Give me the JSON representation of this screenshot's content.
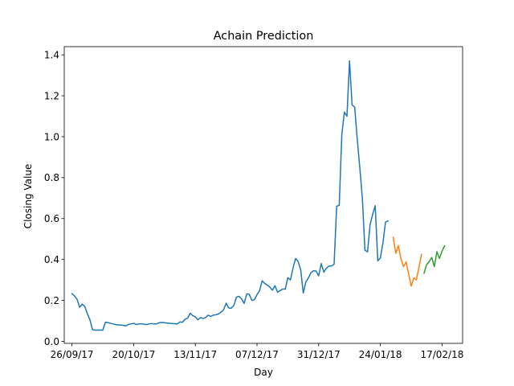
{
  "chart_data": {
    "type": "line",
    "title": "Achain Prediction",
    "xlabel": "Day",
    "ylabel": "Closing Value",
    "ylim": [
      -0.01,
      1.44
    ],
    "xlim": [
      "2017-09-23",
      "2018-02-25"
    ],
    "grid": false,
    "x_tick_labels": [
      "26/09/17",
      "20/10/17",
      "13/11/17",
      "07/12/17",
      "31/12/17",
      "24/01/18",
      "17/02/18"
    ],
    "x_tick_dates": [
      "2017-09-26",
      "2017-10-20",
      "2017-11-13",
      "2017-12-07",
      "2017-12-31",
      "2018-01-24",
      "2018-02-17"
    ],
    "y_ticks": [
      0.0,
      0.2,
      0.4,
      0.6,
      0.8,
      1.0,
      1.2,
      1.4
    ],
    "y_tick_labels": [
      "0.0",
      "0.2",
      "0.4",
      "0.6",
      "0.8",
      "1.0",
      "1.2",
      "1.4"
    ],
    "series": [
      {
        "color": "#1f77b4",
        "x": [
          "2017-09-26",
          "2017-09-27",
          "2017-09-28",
          "2017-09-29",
          "2017-09-30",
          "2017-10-01",
          "2017-10-02",
          "2017-10-03",
          "2017-10-04",
          "2017-10-05",
          "2017-10-06",
          "2017-10-07",
          "2017-10-08",
          "2017-10-09",
          "2017-10-10",
          "2017-10-11",
          "2017-10-12",
          "2017-10-13",
          "2017-10-14",
          "2017-10-15",
          "2017-10-16",
          "2017-10-17",
          "2017-10-18",
          "2017-10-19",
          "2017-10-20",
          "2017-10-21",
          "2017-10-22",
          "2017-10-23",
          "2017-10-24",
          "2017-10-25",
          "2017-10-26",
          "2017-10-27",
          "2017-10-28",
          "2017-10-29",
          "2017-10-30",
          "2017-10-31",
          "2017-11-01",
          "2017-11-02",
          "2017-11-03",
          "2017-11-04",
          "2017-11-05",
          "2017-11-06",
          "2017-11-07",
          "2017-11-08",
          "2017-11-09",
          "2017-11-10",
          "2017-11-11",
          "2017-11-12",
          "2017-11-13",
          "2017-11-14",
          "2017-11-15",
          "2017-11-16",
          "2017-11-17",
          "2017-11-18",
          "2017-11-19",
          "2017-11-20",
          "2017-11-21",
          "2017-11-22",
          "2017-11-23",
          "2017-11-24",
          "2017-11-25",
          "2017-11-26",
          "2017-11-27",
          "2017-11-28",
          "2017-11-29",
          "2017-11-30",
          "2017-12-01",
          "2017-12-02",
          "2017-12-03",
          "2017-12-04",
          "2017-12-05",
          "2017-12-06",
          "2017-12-07",
          "2017-12-08",
          "2017-12-09",
          "2017-12-10",
          "2017-12-11",
          "2017-12-12",
          "2017-12-13",
          "2017-12-14",
          "2017-12-15",
          "2017-12-16",
          "2017-12-17",
          "2017-12-18",
          "2017-12-19",
          "2017-12-20",
          "2017-12-21",
          "2017-12-22",
          "2017-12-23",
          "2017-12-24",
          "2017-12-25",
          "2017-12-26",
          "2017-12-27",
          "2017-12-28",
          "2017-12-29",
          "2017-12-30",
          "2017-12-31",
          "2018-01-01",
          "2018-01-02",
          "2018-01-03",
          "2018-01-04",
          "2018-01-05",
          "2018-01-06",
          "2018-01-07",
          "2018-01-08",
          "2018-01-09",
          "2018-01-10",
          "2018-01-11",
          "2018-01-12",
          "2018-01-13",
          "2018-01-14",
          "2018-01-15",
          "2018-01-16",
          "2018-01-17",
          "2018-01-18",
          "2018-01-19",
          "2018-01-20",
          "2018-01-21",
          "2018-01-22",
          "2018-01-23",
          "2018-01-24",
          "2018-01-25",
          "2018-01-26",
          "2018-01-27"
        ],
        "y": [
          0.233,
          0.222,
          0.205,
          0.166,
          0.182,
          0.17,
          0.135,
          0.105,
          0.057,
          0.055,
          0.055,
          0.055,
          0.055,
          0.093,
          0.092,
          0.088,
          0.085,
          0.082,
          0.08,
          0.08,
          0.078,
          0.075,
          0.083,
          0.085,
          0.088,
          0.082,
          0.085,
          0.086,
          0.084,
          0.082,
          0.085,
          0.087,
          0.085,
          0.086,
          0.091,
          0.092,
          0.091,
          0.089,
          0.088,
          0.087,
          0.086,
          0.085,
          0.095,
          0.093,
          0.108,
          0.113,
          0.137,
          0.126,
          0.12,
          0.105,
          0.116,
          0.112,
          0.116,
          0.128,
          0.122,
          0.128,
          0.13,
          0.134,
          0.142,
          0.154,
          0.186,
          0.163,
          0.162,
          0.176,
          0.216,
          0.22,
          0.207,
          0.185,
          0.232,
          0.23,
          0.2,
          0.203,
          0.228,
          0.248,
          0.296,
          0.283,
          0.275,
          0.265,
          0.25,
          0.272,
          0.24,
          0.248,
          0.255,
          0.255,
          0.311,
          0.3,
          0.357,
          0.405,
          0.39,
          0.35,
          0.236,
          0.29,
          0.31,
          0.336,
          0.345,
          0.343,
          0.32,
          0.38,
          0.338,
          0.357,
          0.368,
          0.368,
          0.377,
          0.66,
          0.665,
          1.01,
          1.12,
          1.1,
          1.37,
          1.155,
          1.145,
          0.99,
          0.85,
          0.7,
          0.446,
          0.437,
          0.57,
          0.62,
          0.663,
          0.393,
          0.408,
          0.48,
          0.583,
          0.588
        ]
      },
      {
        "color": "#ff7f0e",
        "x": [
          "2018-01-29",
          "2018-01-30",
          "2018-01-31",
          "2018-02-01",
          "2018-02-02",
          "2018-02-03",
          "2018-02-04",
          "2018-02-05",
          "2018-02-06",
          "2018-02-07",
          "2018-02-08",
          "2018-02-09"
        ],
        "y": [
          0.508,
          0.43,
          0.468,
          0.405,
          0.365,
          0.388,
          0.33,
          0.27,
          0.31,
          0.3,
          0.36,
          0.425
        ]
      },
      {
        "color": "#2ca02c",
        "x": [
          "2018-02-10",
          "2018-02-11",
          "2018-02-12",
          "2018-02-13",
          "2018-02-14",
          "2018-02-15",
          "2018-02-16",
          "2018-02-17",
          "2018-02-18"
        ],
        "y": [
          0.333,
          0.375,
          0.39,
          0.41,
          0.365,
          0.438,
          0.405,
          0.44,
          0.467
        ]
      }
    ]
  }
}
